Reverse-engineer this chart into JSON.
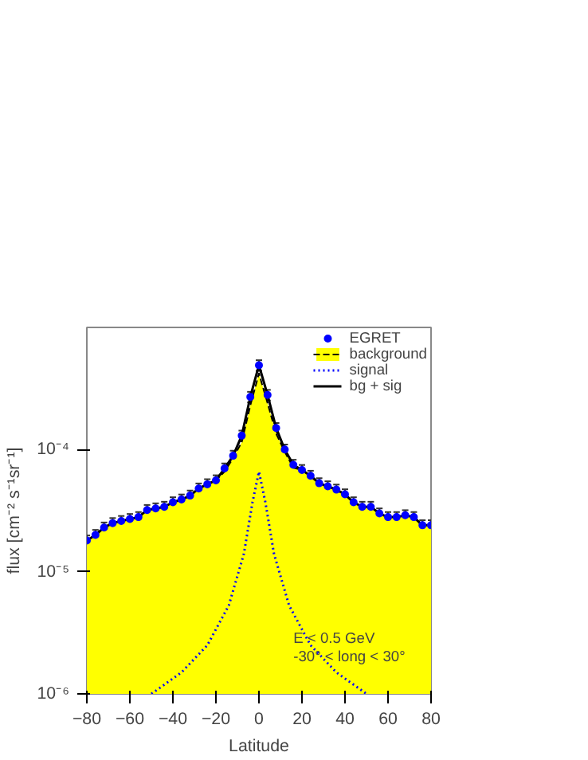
{
  "chart_data": {
    "type": "line",
    "xlabel": "Latitude",
    "ylabel": "flux [cm⁻² s⁻¹sr⁻¹]",
    "x": [
      -80,
      -76,
      -72,
      -68,
      -64,
      -60,
      -56,
      -52,
      -48,
      -44,
      -40,
      -36,
      -32,
      -28,
      -24,
      -20,
      -16,
      -12,
      -8,
      -4,
      0,
      4,
      8,
      12,
      16,
      20,
      24,
      28,
      32,
      36,
      40,
      44,
      48,
      52,
      56,
      60,
      64,
      68,
      72,
      76,
      80
    ],
    "series": [
      {
        "name": "background",
        "type": "area",
        "color": "#ffff00",
        "line_style": "dashed",
        "values": [
          1.8e-05,
          2e-05,
          2.3e-05,
          2.5e-05,
          2.6e-05,
          2.7e-05,
          2.8e-05,
          3.2e-05,
          3.3e-05,
          3.4e-05,
          3.7e-05,
          3.9e-05,
          4.2e-05,
          4.8e-05,
          5.2e-05,
          5.6e-05,
          6.6e-05,
          8.5e-05,
          0.000115,
          0.00023,
          0.00042,
          0.00024,
          0.000135,
          9.6e-05,
          7.1e-05,
          6.8e-05,
          6.1e-05,
          5.3e-05,
          5e-05,
          4.7e-05,
          4.3e-05,
          3.7e-05,
          3.4e-05,
          3.4e-05,
          3e-05,
          2.8e-05,
          2.8e-05,
          2.9e-05,
          2.8e-05,
          2.4e-05,
          2.4e-05
        ]
      },
      {
        "name": "signal",
        "type": "line",
        "color": "#0000ff",
        "line_style": "dotted",
        "x": [
          -50,
          -36,
          -24,
          -14,
          -7,
          -3,
          0,
          3,
          7,
          14,
          24,
          36,
          50
        ],
        "values": [
          1e-06,
          1.5e-06,
          2.5e-06,
          5.3e-06,
          1.4e-05,
          3.7e-05,
          6.6e-05,
          3.7e-05,
          1.4e-05,
          5.3e-06,
          2.5e-06,
          1.5e-06,
          1e-06
        ]
      },
      {
        "name": "bg + sig",
        "color": "#000000",
        "line_style": "solid",
        "values": [
          1.8e-05,
          2e-05,
          2.3e-05,
          2.5e-05,
          2.6e-05,
          2.7e-05,
          2.8e-05,
          3.2e-05,
          3.3e-05,
          3.4e-05,
          3.7e-05,
          3.9e-05,
          4.2e-05,
          4.8e-05,
          5.2e-05,
          5.6e-05,
          7e-05,
          8.9e-05,
          0.00013,
          0.00027,
          0.00049,
          0.00028,
          0.00015,
          0.0001,
          7.5e-05,
          6.8e-05,
          6.1e-05,
          5.3e-05,
          5e-05,
          4.7e-05,
          4.3e-05,
          3.7e-05,
          3.4e-05,
          3.4e-05,
          3e-05,
          2.8e-05,
          2.8e-05,
          2.9e-05,
          2.8e-05,
          2.4e-05,
          2.4e-05
        ]
      },
      {
        "name": "EGRET",
        "type": "scatter",
        "color": "#0000ff",
        "marker": "circle",
        "values": [
          1.8e-05,
          2e-05,
          2.3e-05,
          2.5e-05,
          2.6e-05,
          2.7e-05,
          2.8e-05,
          3.2e-05,
          3.3e-05,
          3.4e-05,
          3.7e-05,
          3.9e-05,
          4.2e-05,
          4.8e-05,
          5.2e-05,
          5.6e-05,
          7e-05,
          8.9e-05,
          0.00013,
          0.00027,
          0.00049,
          0.00028,
          0.00015,
          0.0001,
          7.5e-05,
          6.8e-05,
          6.1e-05,
          5.3e-05,
          5e-05,
          4.7e-05,
          4.3e-05,
          3.7e-05,
          3.4e-05,
          3.4e-05,
          3e-05,
          2.8e-05,
          2.8e-05,
          2.9e-05,
          2.8e-05,
          2.4e-05,
          2.4e-05
        ],
        "errors": [
          1.8e-06,
          2e-06,
          2.3e-06,
          2.5e-06,
          2.6e-06,
          2.7e-06,
          2.8e-06,
          3.2e-06,
          3.3e-06,
          3.4e-06,
          3.7e-06,
          3.9e-06,
          4.2e-06,
          4.8e-06,
          5.2e-06,
          5.6e-06,
          7e-06,
          8.9e-06,
          1.3e-05,
          2.7e-05,
          4.9e-05,
          2.8e-05,
          1.5e-05,
          1e-05,
          7.5e-06,
          6.8e-06,
          6.1e-06,
          5.3e-06,
          5e-06,
          4.7e-06,
          4.3e-06,
          3.7e-06,
          3.4e-06,
          3.4e-06,
          3e-06,
          2.8e-06,
          2.8e-06,
          2.9e-06,
          2.8e-06,
          2.4e-06,
          2.4e-06
        ]
      }
    ],
    "log": "y",
    "xlim": [
      -80,
      80
    ],
    "ylim": [
      1e-06,
      0.001
    ],
    "xticks": [
      -80,
      -60,
      -40,
      -20,
      0,
      20,
      40,
      60,
      80
    ],
    "yticks": [
      {
        "value": 1e-06,
        "label": "10⁻⁶"
      },
      {
        "value": 1e-05,
        "label": "10⁻⁵"
      },
      {
        "value": 0.0001,
        "label": "10⁻⁴"
      }
    ],
    "grid": false,
    "legend": "top right",
    "annotations": [
      "E < 0.5 GeV",
      "-30° < long < 30°"
    ]
  }
}
